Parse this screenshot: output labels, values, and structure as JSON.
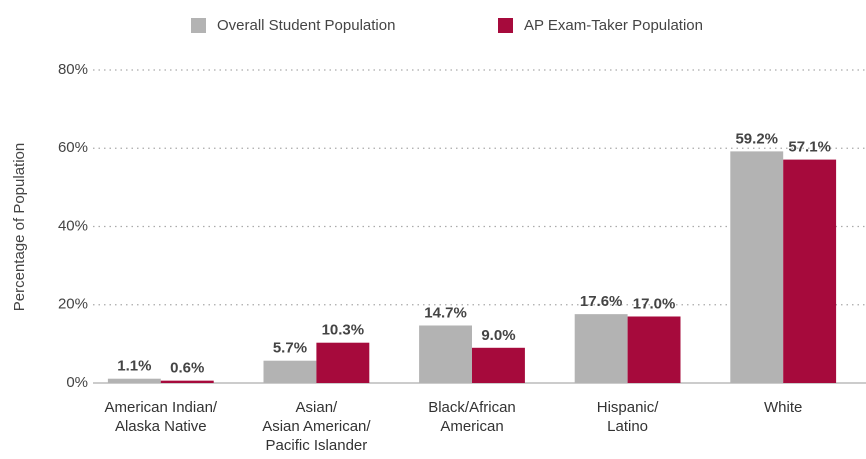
{
  "chart_data": {
    "type": "bar",
    "ylabel": "Percentage of Population",
    "categories": [
      "American Indian/\nAlaska Native",
      "Asian/\nAsian American/\nPacific Islander",
      "Black/African\nAmerican",
      "Hispanic/\nLatino",
      "White"
    ],
    "series": [
      {
        "name": "Overall Student Population",
        "color": "#b3b3b3",
        "label_color": "#bdbdbd",
        "values": [
          1.1,
          5.7,
          14.7,
          17.6,
          59.2
        ],
        "value_labels": [
          "1.1%",
          "5.7%",
          "14.7%",
          "17.6%",
          "59.2%"
        ]
      },
      {
        "name": "AP Exam-Taker Population",
        "color": "#a60a3c",
        "label_color": "#a60a3c",
        "values": [
          0.6,
          10.3,
          9.0,
          17.0,
          57.1
        ],
        "value_labels": [
          "0.6%",
          "10.3%",
          "9.0%",
          "17.0%",
          "57.1%"
        ]
      }
    ],
    "ylim": [
      0,
      80
    ],
    "yticks": [
      {
        "value": 0,
        "label": "0%"
      },
      {
        "value": 20,
        "label": "20%"
      },
      {
        "value": 40,
        "label": "40%"
      },
      {
        "value": 60,
        "label": "60%"
      },
      {
        "value": 80,
        "label": "80%"
      }
    ],
    "grid": true,
    "legend": "top"
  }
}
